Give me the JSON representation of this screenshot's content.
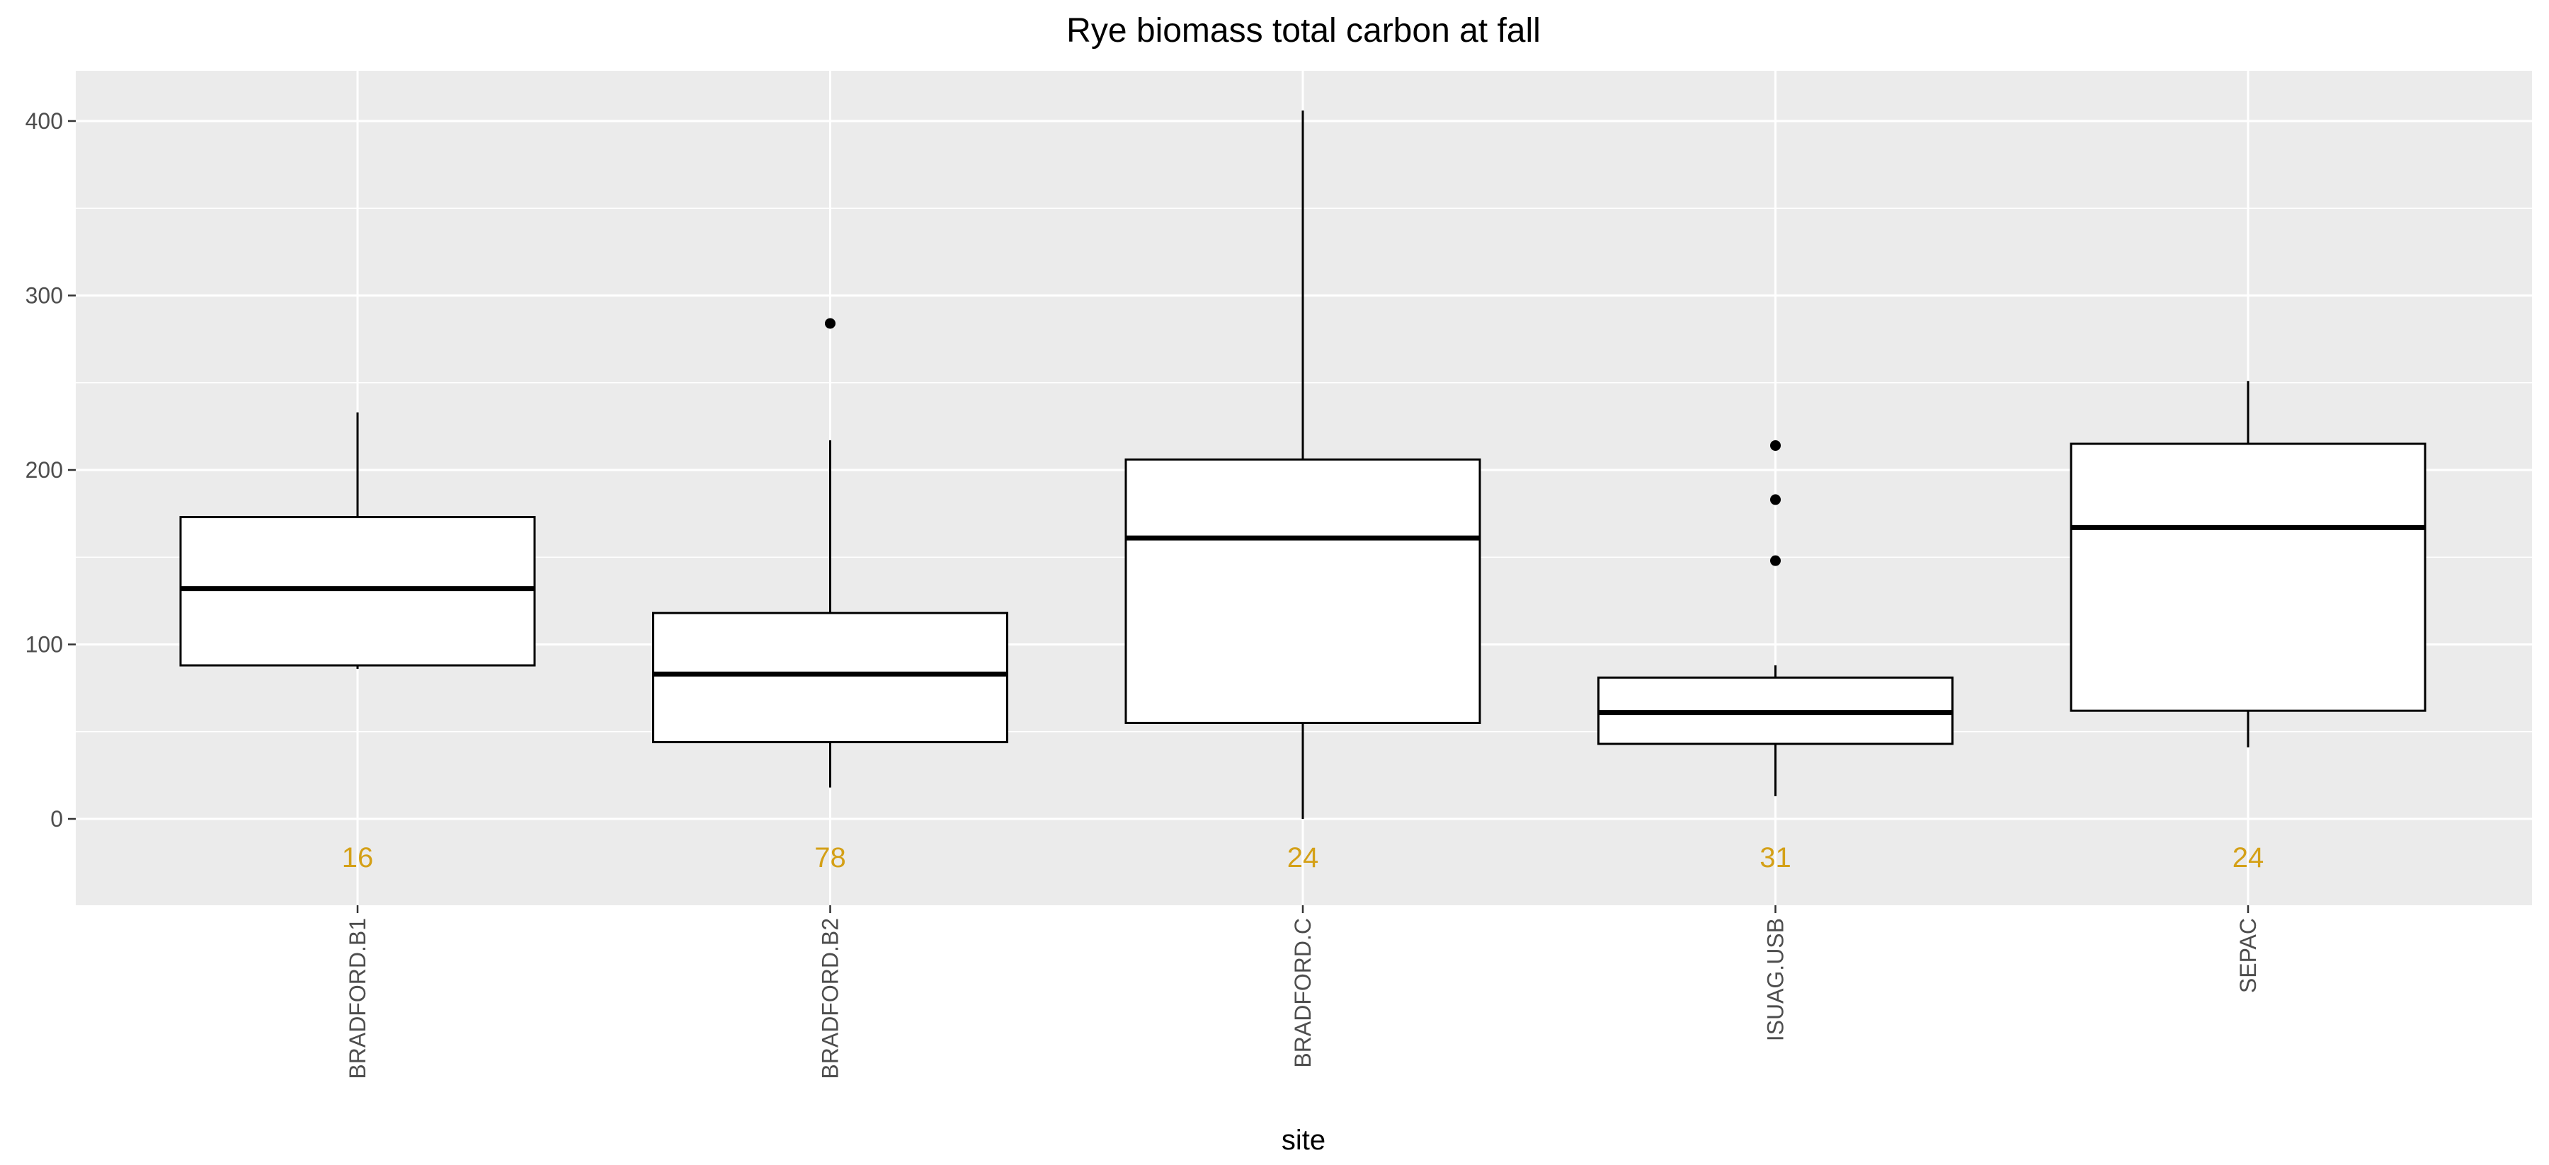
{
  "chart_data": {
    "type": "boxplot",
    "title": "Rye biomass total carbon at fall",
    "xlabel": "site",
    "ylabel": "",
    "ylim": [
      -50,
      430
    ],
    "yticks": [
      0,
      100,
      200,
      300,
      400
    ],
    "grid": true,
    "count_color": "#D4A017",
    "categories": [
      "BRADFORD.B1",
      "BRADFORD.B2",
      "BRADFORD.C",
      "ISUAG.USB",
      "SEPAC"
    ],
    "boxes": [
      {
        "site": "BRADFORD.B1",
        "lower_whisker": 86,
        "q1": 88,
        "median": 132,
        "q3": 173,
        "upper_whisker": 233,
        "outliers": [],
        "n": "16"
      },
      {
        "site": "BRADFORD.B2",
        "lower_whisker": 18,
        "q1": 44,
        "median": 83,
        "q3": 118,
        "upper_whisker": 217,
        "outliers": [
          284
        ],
        "n": "78"
      },
      {
        "site": "BRADFORD.C",
        "lower_whisker": 0,
        "q1": 55,
        "median": 161,
        "q3": 206,
        "upper_whisker": 406,
        "outliers": [],
        "n": "24"
      },
      {
        "site": "ISUAG.USB",
        "lower_whisker": 13,
        "q1": 43,
        "median": 61,
        "q3": 81,
        "upper_whisker": 88,
        "outliers": [
          148,
          183,
          214
        ],
        "n": "31"
      },
      {
        "site": "SEPAC",
        "lower_whisker": 41,
        "q1": 62,
        "median": 167,
        "q3": 215,
        "upper_whisker": 251,
        "outliers": [],
        "n": "24"
      }
    ]
  }
}
